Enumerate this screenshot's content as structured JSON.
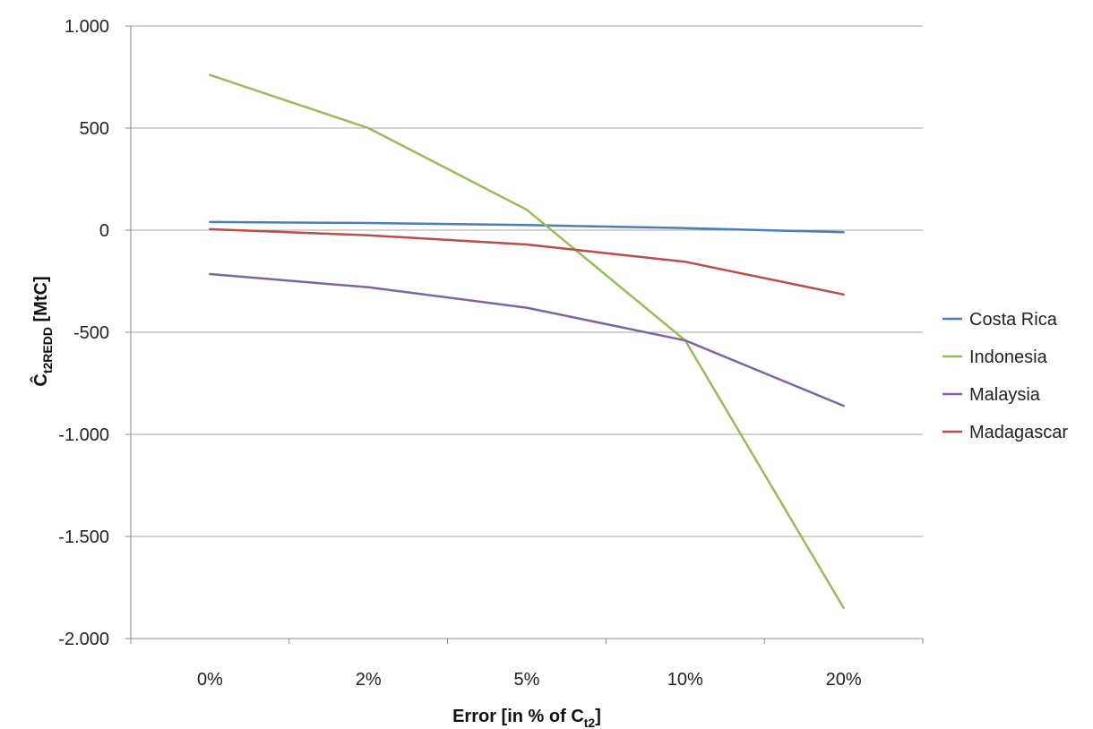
{
  "chart_data": {
    "type": "line",
    "title": "",
    "xlabel": "Error [in % of C",
    "xlabel_subscript": "t2",
    "xlabel_suffix": "]",
    "ylabel": "Ĉ",
    "ylabel_subscript": "t2REDD",
    "ylabel_suffix": " [MtC]",
    "categories": [
      "0%",
      "2%",
      "5%",
      "10%",
      "20%"
    ],
    "ylim": [
      -2000,
      1000
    ],
    "yticks": [
      1000,
      500,
      0,
      -500,
      -1000,
      -1500,
      -2000
    ],
    "ytick_labels": [
      "1.000",
      "500",
      "0",
      "-500",
      "-1.000",
      "-1.500",
      "-2.000"
    ],
    "grid": true,
    "legend_position": "right",
    "series": [
      {
        "name": "Costa Rica",
        "color": "#4a7ebb",
        "values": [
          40,
          35,
          25,
          10,
          -10
        ]
      },
      {
        "name": "Indonesia",
        "color": "#9bbb59",
        "values": [
          760,
          500,
          100,
          -540,
          -1850
        ]
      },
      {
        "name": "Malaysia",
        "color": "#8064a2",
        "values": [
          -215,
          -280,
          -380,
          -540,
          -860
        ]
      },
      {
        "name": "Madagascar",
        "color": "#be4b48",
        "values": [
          5,
          -25,
          -70,
          -155,
          -315
        ]
      }
    ]
  }
}
